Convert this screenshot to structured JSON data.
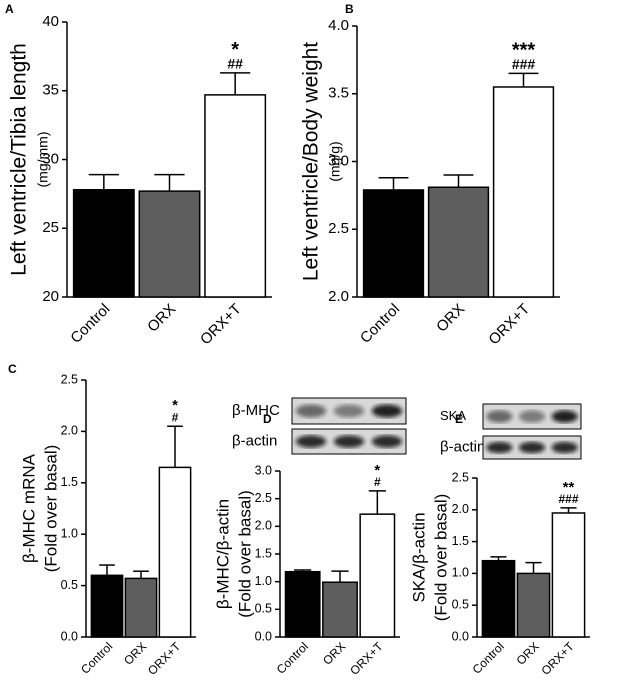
{
  "chart_data": [
    {
      "type": "bar",
      "panel": "A",
      "ylabel": [
        "Left ventricle/Tibia length",
        "(mg/mm)"
      ],
      "categories": [
        "Control",
        "ORX",
        "ORX+T"
      ],
      "values": [
        27.8,
        27.7,
        34.7
      ],
      "errors": [
        1.1,
        1.2,
        1.6
      ],
      "colors": [
        "#000000",
        "#5e5e5e",
        "#ffffff"
      ],
      "ylim": [
        20,
        40
      ],
      "yticks": [
        20,
        25,
        30,
        35,
        40
      ],
      "annotations": [
        "*",
        "##"
      ]
    },
    {
      "type": "bar",
      "panel": "B",
      "ylabel": [
        "Left ventricle/Body weight",
        "(mg/g)"
      ],
      "categories": [
        "Control",
        "ORX",
        "ORX+T"
      ],
      "values": [
        2.79,
        2.81,
        3.55
      ],
      "errors": [
        0.09,
        0.09,
        0.1
      ],
      "colors": [
        "#000000",
        "#5e5e5e",
        "#ffffff"
      ],
      "ylim": [
        2,
        4
      ],
      "yticks": [
        {
          "value": 2,
          "label": "2.0"
        },
        2.5,
        {
          "value": 3,
          "label": "3.0"
        },
        3.5,
        {
          "value": 4,
          "label": "4.0"
        }
      ],
      "annotations": [
        "***",
        "###"
      ]
    },
    {
      "type": "bar",
      "panel": "C",
      "ylabel": [
        "β-MHC mRNA",
        "(Fold over basal)"
      ],
      "categories": [
        "Control",
        "ORX",
        "ORX+T"
      ],
      "values": [
        0.6,
        0.57,
        1.65
      ],
      "errors": [
        0.1,
        0.07,
        0.4
      ],
      "colors": [
        "#000000",
        "#5e5e5e",
        "#ffffff"
      ],
      "ylim": [
        0,
        2.5
      ],
      "yticks": [
        {
          "value": 0,
          "label": "0.0"
        },
        0.5,
        {
          "value": 1,
          "label": "1.0"
        },
        1.5,
        {
          "value": 2,
          "label": "2.0"
        },
        2.5
      ],
      "annotations": [
        "*",
        "#"
      ]
    },
    {
      "type": "bar",
      "panel": "D",
      "ylabel": [
        "β-MHC/β-actin",
        "(Fold over basal)"
      ],
      "categories": [
        "Control",
        "ORX",
        "ORX+T"
      ],
      "values": [
        1.18,
        0.99,
        2.22
      ],
      "errors": [
        0.03,
        0.2,
        0.42
      ],
      "colors": [
        "#000000",
        "#5e5e5e",
        "#ffffff"
      ],
      "ylim": [
        0,
        3
      ],
      "yticks": [
        {
          "value": 0,
          "label": "0.0"
        },
        0.5,
        {
          "value": 1,
          "label": "1.0"
        },
        1.5,
        {
          "value": 2,
          "label": "2.0"
        },
        2.5,
        {
          "value": 3,
          "label": "3.0"
        }
      ],
      "annotations": [
        "*",
        "#"
      ],
      "blots": [
        "β-MHC",
        "β-actin"
      ]
    },
    {
      "type": "bar",
      "panel": "E",
      "ylabel": [
        "SKA/β-actin",
        "(Fold over basal)"
      ],
      "categories": [
        "Control",
        "ORX",
        "ORX+T"
      ],
      "values": [
        1.2,
        1.0,
        1.95
      ],
      "errors": [
        0.06,
        0.17,
        0.08
      ],
      "colors": [
        "#000000",
        "#5e5e5e",
        "#ffffff"
      ],
      "ylim": [
        0,
        2.5
      ],
      "yticks": [
        {
          "value": 0,
          "label": "0.0"
        },
        0.5,
        {
          "value": 1,
          "label": "1.0"
        },
        1.5,
        {
          "value": 2,
          "label": "2.0"
        },
        2.5
      ],
      "annotations": [
        "**",
        "###"
      ],
      "blots": [
        "SKA",
        "β-actin"
      ]
    }
  ]
}
